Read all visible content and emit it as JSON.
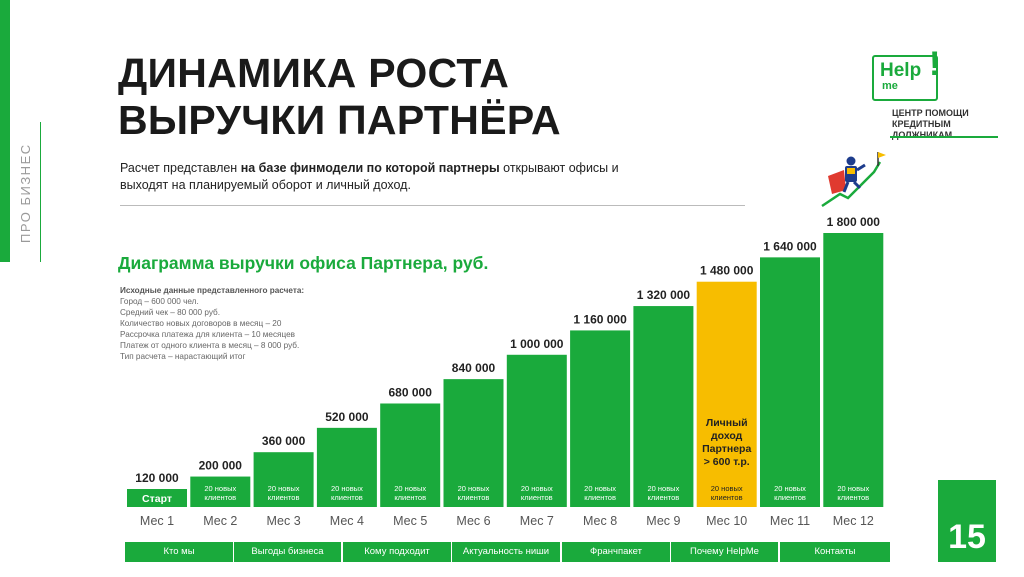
{
  "side_label": "ПРО БИЗНЕС",
  "title": "ДИНАМИКА РОСТА ВЫРУЧКИ ПАРТНЁРА",
  "subtitle": {
    "part1": "Расчет представлен ",
    "bold": "на базе финмодели по которой партнеры",
    "part2": " открывают офисы и выходят на планируемый оборот и личный доход."
  },
  "logo": {
    "help": "Help",
    "me": "me",
    "exclaim": "!",
    "caption_line1": "ЦЕНТР ПОМОЩИ",
    "caption_line2": "КРЕДИТНЫМ ДОЛЖНИКАМ"
  },
  "assumptions": {
    "heading": "Исходные данные представленного расчета:",
    "lines": [
      "Город – 600 000 чел.",
      "Средний чек – 80 000 руб.",
      "Количество новых договоров в месяц – 20",
      "Рассрочка платежа для клиента – 10 месяцев",
      "Платеж от одного клиента в месяц – 8 000 руб.",
      "Тип расчета – нарастающий итог"
    ]
  },
  "colors": {
    "green": "#1aaa3c",
    "highlight": "#f7bd00"
  },
  "chart_data": {
    "type": "bar",
    "title": "Диаграмма выручки офиса Партнера, руб.",
    "xlabel": "",
    "ylabel": "",
    "categories": [
      "Мес 1",
      "Мес 2",
      "Мес 3",
      "Мес 4",
      "Мес 5",
      "Мес 6",
      "Мес 7",
      "Мес 8",
      "Мес 9",
      "Мес 10",
      "Мес 11",
      "Мес 12"
    ],
    "values": [
      120000,
      200000,
      360000,
      520000,
      680000,
      840000,
      1000000,
      1160000,
      1320000,
      1480000,
      1640000,
      1800000
    ],
    "value_labels": [
      "120 000",
      "200 000",
      "360 000",
      "520 000",
      "680 000",
      "840 000",
      "1 000 000",
      "1 160 000",
      "1 320 000",
      "1 480 000",
      "1 640 000",
      "1 800 000"
    ],
    "ylim": [
      0,
      1800000
    ],
    "grid": false,
    "bar_inner_labels": [
      "Старт",
      "20 новых клиентов",
      "20 новых клиентов",
      "20 новых клиентов",
      "20 новых клиентов",
      "20 новых клиентов",
      "20 новых клиентов",
      "20 новых клиентов",
      "20 новых клиентов",
      "20 новых клиентов",
      "20 новых клиентов",
      "20 новых клиентов"
    ],
    "highlight_index": 9,
    "highlight_note": "Личный доход Партнера > 600 т.р."
  },
  "nav": [
    "Кто мы",
    "Выгоды бизнеса",
    "Кому подходит",
    "Актуальность ниши",
    "Франчпакет",
    "Почему HelpMe",
    "Контакты"
  ],
  "page_number": "15"
}
